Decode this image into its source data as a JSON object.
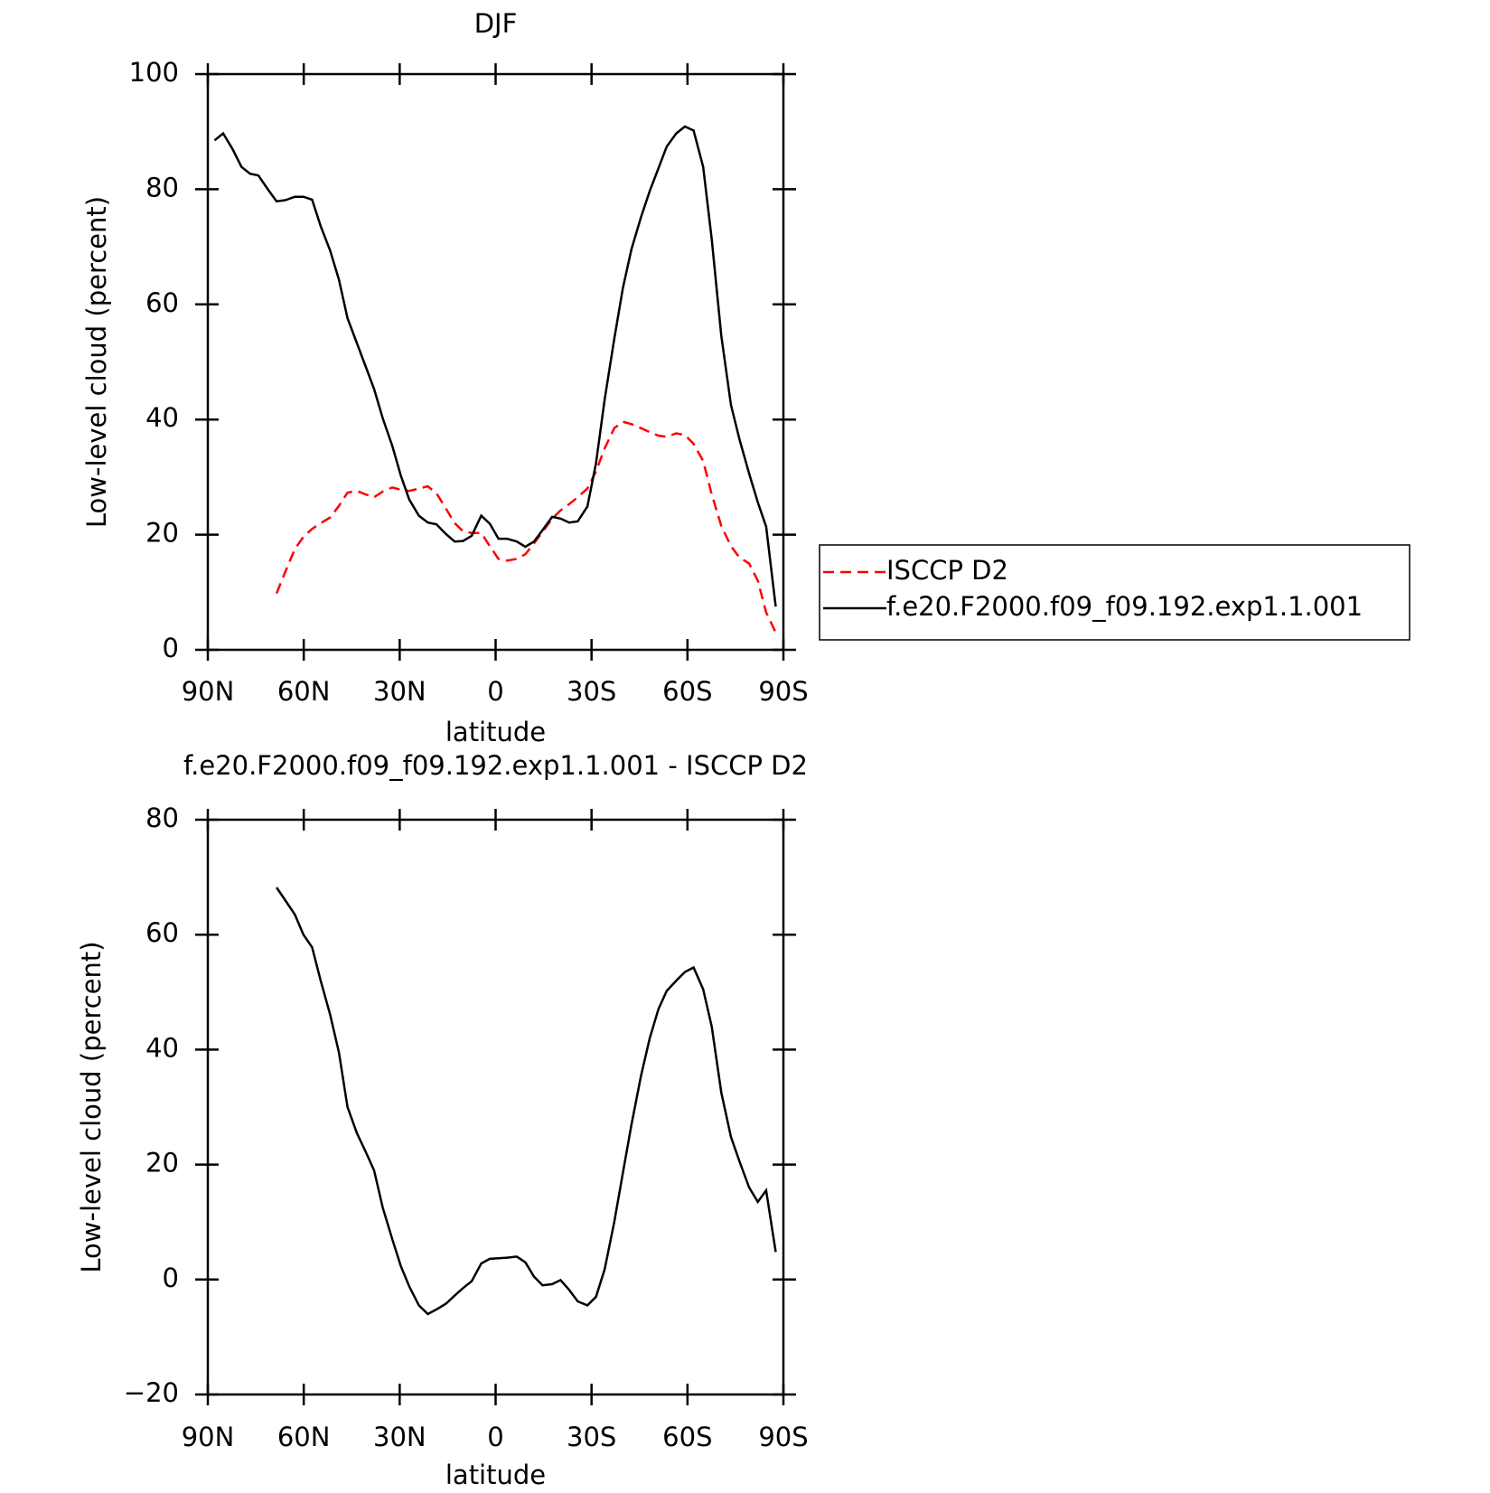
{
  "chart_data": [
    {
      "type": "line",
      "title": "DJF",
      "x_label": "latitude",
      "y_label": "Low-level cloud (percent)",
      "xlim": [
        90,
        -90
      ],
      "ylim": [
        0,
        100
      ],
      "xticks": [
        {
          "value": 90,
          "label": "90N"
        },
        {
          "value": 60,
          "label": "60N"
        },
        {
          "value": 30,
          "label": "30N"
        },
        0,
        {
          "value": -30,
          "label": "30S"
        },
        {
          "value": -60,
          "label": "60S"
        },
        {
          "value": -90,
          "label": "90S"
        }
      ],
      "yticks": [
        0,
        20,
        40,
        60,
        80,
        100
      ],
      "legend": "right",
      "x": [
        87.9,
        85.2,
        82.2,
        79.5,
        76.8,
        74.2,
        71.5,
        68.5,
        65.8,
        62.8,
        60.1,
        57.4,
        54.7,
        51.7,
        49.0,
        46.3,
        43.4,
        40.7,
        38.0,
        35.3,
        32.3,
        29.6,
        27.0,
        24.0,
        21.2,
        18.5,
        15.5,
        12.8,
        10.2,
        7.5,
        4.5,
        1.8,
        -0.9,
        -3.6,
        -6.6,
        -9.3,
        -12.0,
        -14.7,
        -17.7,
        -20.3,
        -23.0,
        -25.7,
        -28.7,
        -31.4,
        -34.1,
        -37.1,
        -39.8,
        -42.5,
        -45.5,
        -48.2,
        -50.9,
        -53.5,
        -56.5,
        -59.2,
        -61.9,
        -64.9,
        -67.6,
        -70.6,
        -73.6,
        -76.3,
        -79.3,
        -82.0,
        -84.6,
        -87.6
      ],
      "series": [
        {
          "name": "ISCCP D2",
          "color": "#ff0000",
          "linestyle": "dashed",
          "values": [
            null,
            null,
            null,
            null,
            null,
            null,
            null,
            9.8,
            13.5,
            17.5,
            19.6,
            21.0,
            22.0,
            23.0,
            25.0,
            27.3,
            27.6,
            27.0,
            26.5,
            27.5,
            28.2,
            27.8,
            27.6,
            28.0,
            28.4,
            27.2,
            24.5,
            22.0,
            20.6,
            20.3,
            20.3,
            18.0,
            15.8,
            15.5,
            15.8,
            16.6,
            18.5,
            20.5,
            22.8,
            24.2,
            25.3,
            26.5,
            28.0,
            31.0,
            35.0,
            38.5,
            39.6,
            39.2,
            38.5,
            37.8,
            37.2,
            37.0,
            37.6,
            37.3,
            35.8,
            32.8,
            27.0,
            21.5,
            18.0,
            16.0,
            15.0,
            12.0,
            6.5,
            3.0
          ]
        },
        {
          "name": "f.e20.F2000.f09_f09.192.exp1.1.001",
          "color": "#000000",
          "linestyle": "solid",
          "values": [
            88.5,
            89.7,
            86.9,
            83.9,
            82.7,
            82.4,
            80.2,
            77.9,
            78.1,
            78.7,
            78.7,
            78.2,
            73.6,
            69.3,
            64.3,
            57.6,
            53.3,
            49.3,
            45.3,
            40.2,
            35.4,
            30.2,
            26.1,
            23.3,
            22.1,
            21.8,
            20.1,
            18.8,
            18.9,
            19.8,
            23.3,
            21.9,
            19.3,
            19.3,
            18.8,
            17.9,
            18.8,
            20.8,
            23.1,
            22.8,
            22.1,
            22.3,
            24.9,
            32.4,
            43.5,
            54.0,
            62.8,
            69.6,
            75.2,
            79.7,
            83.6,
            87.4,
            89.7,
            90.9,
            90.2,
            83.9,
            71.3,
            54.5,
            42.5,
            36.5,
            30.6,
            25.6,
            21.4,
            7.5
          ]
        }
      ]
    },
    {
      "type": "line",
      "title": "f.e20.F2000.f09_f09.192.exp1.1.001 - ISCCP D2",
      "x_label": "latitude",
      "y_label": "Low-level cloud (percent)",
      "xlim": [
        90,
        -90
      ],
      "ylim": [
        -20,
        80
      ],
      "xticks": [
        {
          "value": 90,
          "label": "90N"
        },
        {
          "value": 60,
          "label": "60N"
        },
        {
          "value": 30,
          "label": "30N"
        },
        0,
        {
          "value": -30,
          "label": "30S"
        },
        {
          "value": -60,
          "label": "60S"
        },
        {
          "value": -90,
          "label": "90S"
        }
      ],
      "yticks": [
        {
          "value": -20,
          "label": "−20"
        },
        0,
        20,
        40,
        60,
        80
      ],
      "x": [
        87.9,
        85.2,
        82.2,
        79.5,
        76.8,
        74.2,
        71.5,
        68.5,
        65.8,
        62.8,
        60.1,
        57.4,
        54.7,
        51.7,
        49.0,
        46.3,
        43.4,
        40.7,
        38.0,
        35.3,
        32.3,
        29.6,
        27.0,
        24.0,
        21.2,
        18.5,
        15.5,
        12.8,
        10.2,
        7.5,
        4.5,
        1.8,
        -0.9,
        -3.6,
        -6.6,
        -9.3,
        -12.0,
        -14.7,
        -17.7,
        -20.3,
        -23.0,
        -25.7,
        -28.7,
        -31.4,
        -34.1,
        -37.1,
        -39.8,
        -42.5,
        -45.5,
        -48.2,
        -50.9,
        -53.5,
        -56.5,
        -59.2,
        -61.9,
        -64.9,
        -67.6,
        -70.6,
        -73.6,
        -76.3,
        -79.3,
        -82.0,
        -84.6,
        -87.6
      ],
      "series": [
        {
          "color": "#000000",
          "linestyle": "solid",
          "values": [
            null,
            null,
            null,
            null,
            null,
            null,
            null,
            68.2,
            66.0,
            63.5,
            60.0,
            57.8,
            52.0,
            46.0,
            39.5,
            30.0,
            25.5,
            22.3,
            19.0,
            12.5,
            7.0,
            2.3,
            -1.2,
            -4.5,
            -6.0,
            -5.2,
            -4.2,
            -2.8,
            -1.5,
            -0.3,
            2.8,
            3.6,
            3.7,
            3.8,
            4.0,
            3.0,
            0.5,
            -1.0,
            -0.8,
            -0.1,
            -1.8,
            -3.8,
            -4.5,
            -3.0,
            1.8,
            10.0,
            18.5,
            27.0,
            35.5,
            42.0,
            47.0,
            50.2,
            52.0,
            53.5,
            54.3,
            50.5,
            44.0,
            32.5,
            24.8,
            20.5,
            16.0,
            13.5,
            15.5,
            4.8
          ]
        }
      ]
    }
  ]
}
